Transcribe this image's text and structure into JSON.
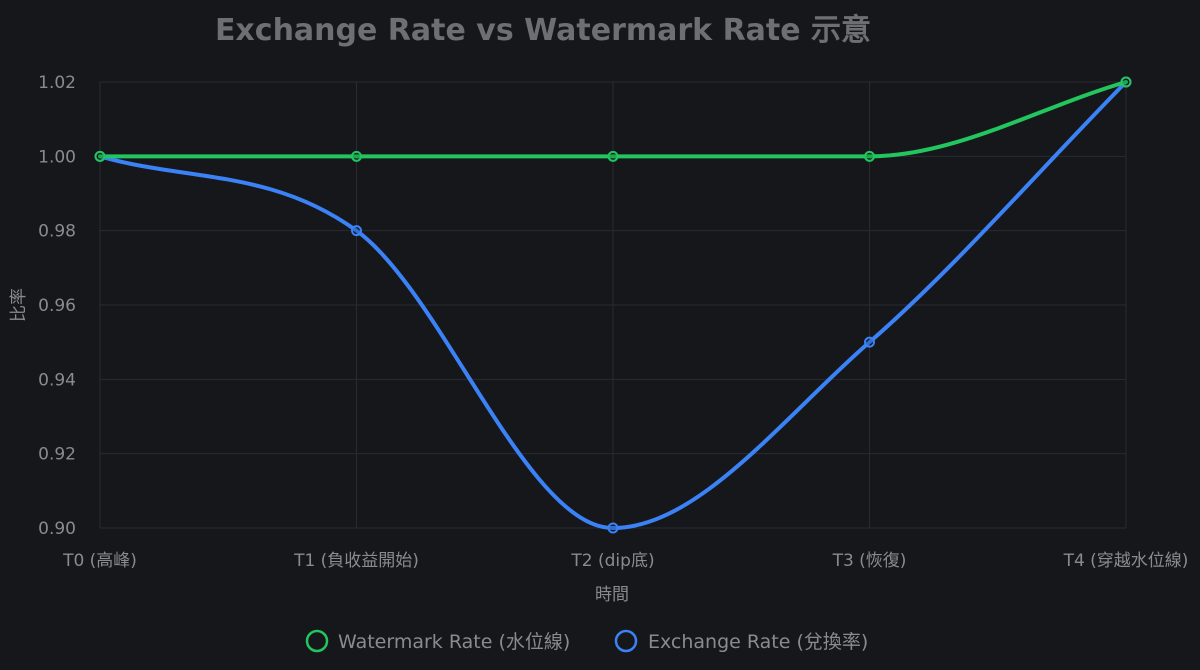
{
  "chart_data": {
    "type": "line",
    "title": "Exchange Rate vs Watermark Rate 示意",
    "xlabel": "時間",
    "ylabel": "比率",
    "categories": [
      "T0 (高峰)",
      "T1 (負收益開始)",
      "T2 (dip底)",
      "T3 (恢復)",
      "T4 (穿越水位線)"
    ],
    "ylim": [
      0.9,
      1.02
    ],
    "yticks": [
      "0.90",
      "0.92",
      "0.94",
      "0.96",
      "0.98",
      "1.00",
      "1.02"
    ],
    "grid": true,
    "legend_position": "bottom",
    "series": [
      {
        "name": "Watermark Rate (水位線)",
        "color": "#22c55e",
        "values": [
          1.0,
          1.0,
          1.0,
          1.0,
          1.02
        ]
      },
      {
        "name": "Exchange Rate (兌換率)",
        "color": "#3b82f6",
        "values": [
          1.0,
          0.98,
          0.9,
          0.95,
          1.02
        ]
      }
    ]
  }
}
